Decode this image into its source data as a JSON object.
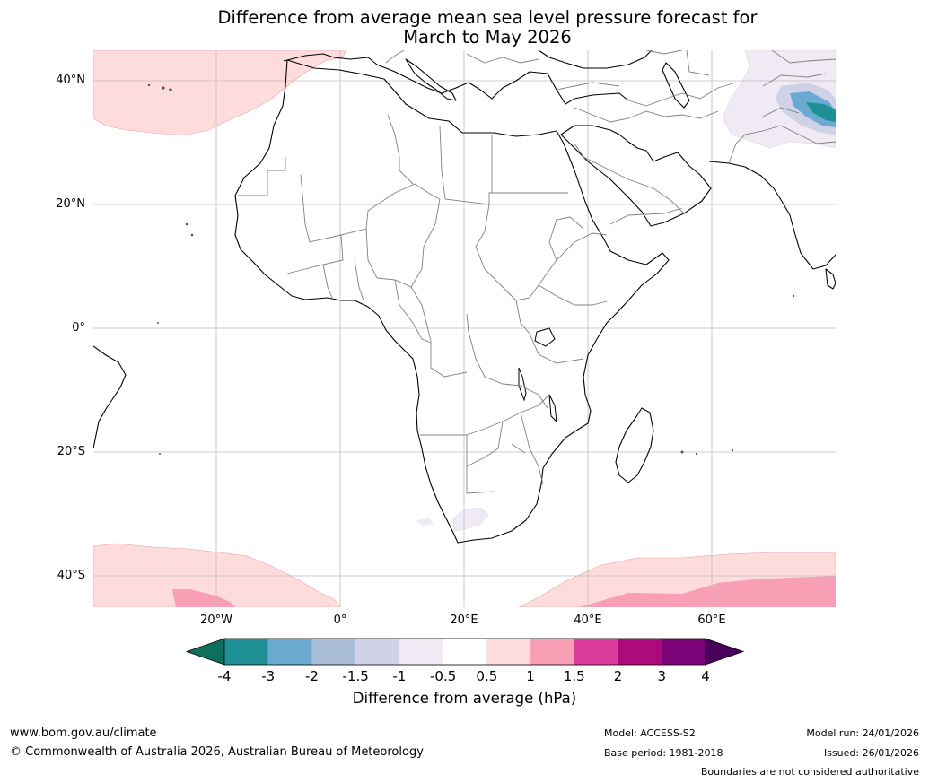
{
  "title": {
    "line1": "Difference from average mean sea level pressure forecast for",
    "line2": "March to May 2026"
  },
  "map": {
    "region": "Africa",
    "lat_labels": [
      "40°N",
      "20°N",
      "0°",
      "20°S",
      "40°S"
    ],
    "lon_labels": [
      "20°W",
      "0°",
      "20°E",
      "40°E",
      "60°E"
    ]
  },
  "colorbar": {
    "ticks": [
      "-4",
      "-3",
      "-2",
      "-1.5",
      "-1",
      "-0.5",
      "0.5",
      "1",
      "1.5",
      "2",
      "3",
      "4"
    ],
    "colors": [
      "#0f6f5f",
      "#1f8f96",
      "#6aaad1",
      "#a9bcd8",
      "#cfd1e6",
      "#efeaf3",
      "#ffffff",
      "#fedcdc",
      "#f89fb5",
      "#dc3c9d",
      "#ad0b7b",
      "#7b0278",
      "#48005a"
    ],
    "label": "Difference from average (hPa)"
  },
  "footer": {
    "website": "www.bom.gov.au/climate",
    "copyright": "© Commonwealth of Australia 2026, Australian Bureau of Meteorology",
    "model": "Model: ACCESS-S2",
    "base_period": "Base period: 1981-2018",
    "model_run": "Model run: 24/01/2026",
    "issued": "Issued: 26/01/2026",
    "disclaimer": "Boundaries are not considered authoritative"
  }
}
